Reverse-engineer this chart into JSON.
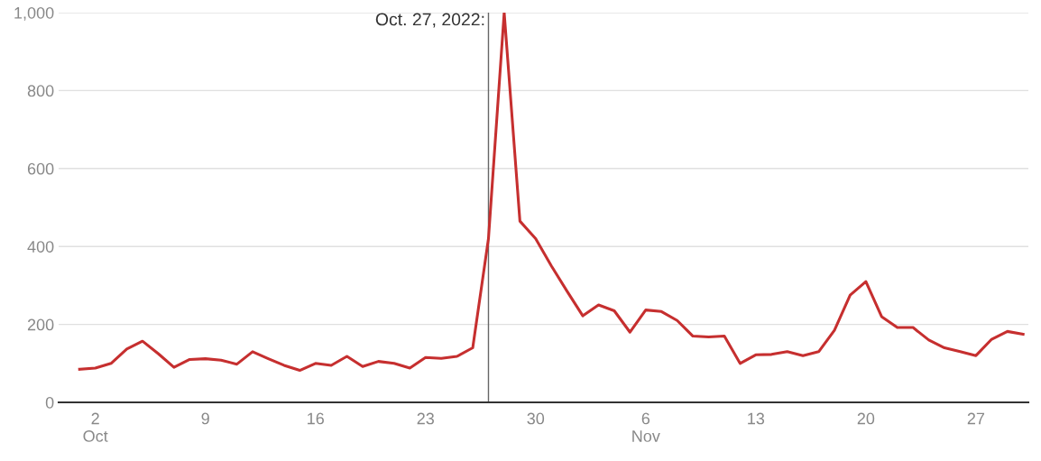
{
  "chart_data": {
    "type": "line",
    "x": [
      "2022-10-01",
      "2022-10-02",
      "2022-10-03",
      "2022-10-04",
      "2022-10-05",
      "2022-10-06",
      "2022-10-07",
      "2022-10-08",
      "2022-10-09",
      "2022-10-10",
      "2022-10-11",
      "2022-10-12",
      "2022-10-13",
      "2022-10-14",
      "2022-10-15",
      "2022-10-16",
      "2022-10-17",
      "2022-10-18",
      "2022-10-19",
      "2022-10-20",
      "2022-10-21",
      "2022-10-22",
      "2022-10-23",
      "2022-10-24",
      "2022-10-25",
      "2022-10-26",
      "2022-10-27",
      "2022-10-28",
      "2022-10-29",
      "2022-10-30",
      "2022-10-31",
      "2022-11-01",
      "2022-11-02",
      "2022-11-03",
      "2022-11-04",
      "2022-11-05",
      "2022-11-06",
      "2022-11-07",
      "2022-11-08",
      "2022-11-09",
      "2022-11-10",
      "2022-11-11",
      "2022-11-12",
      "2022-11-13",
      "2022-11-14",
      "2022-11-15",
      "2022-11-16",
      "2022-11-17",
      "2022-11-18",
      "2022-11-19",
      "2022-11-20",
      "2022-11-21",
      "2022-11-22",
      "2022-11-23",
      "2022-11-24",
      "2022-11-25",
      "2022-11-26",
      "2022-11-27",
      "2022-11-28",
      "2022-11-29",
      "2022-11-30"
    ],
    "series": [
      {
        "color": "#c62f2f",
        "values": [
          85,
          88,
          100,
          137,
          157,
          125,
          90,
          110,
          112,
          108,
          98,
          130,
          112,
          95,
          82,
          100,
          95,
          118,
          92,
          105,
          100,
          88,
          115,
          113,
          118,
          140,
          420,
          1000,
          465,
          420,
          350,
          285,
          222,
          250,
          235,
          180,
          237,
          233,
          210,
          170,
          168,
          170,
          100,
          122,
          123,
          130,
          120,
          130,
          185,
          275,
          310,
          220,
          192,
          192,
          160,
          140,
          130,
          120,
          162,
          182,
          175
        ]
      }
    ],
    "xlim": [
      "2022-09-29T16:00",
      "2022-11-30T08:00"
    ],
    "xticks": [
      {
        "value": "2022-10-02",
        "label": "2\nOct"
      },
      {
        "value": "2022-10-09",
        "label": "9"
      },
      {
        "value": "2022-10-16",
        "label": "16"
      },
      {
        "value": "2022-10-23",
        "label": "23"
      },
      {
        "value": "2022-10-30",
        "label": "30"
      },
      {
        "value": "2022-11-06",
        "label": "6\nNov"
      },
      {
        "value": "2022-11-13",
        "label": "13"
      },
      {
        "value": "2022-11-20",
        "label": "20"
      },
      {
        "value": "2022-11-27",
        "label": "27"
      }
    ],
    "ylim": [
      0,
      1000
    ],
    "yticks": [
      0,
      200,
      400,
      600,
      800,
      {
        "value": 1000,
        "label": "1,000"
      }
    ],
    "grid": "y",
    "marker": "none",
    "line_style": "solid",
    "ref_lines": [
      {
        "axis": "x",
        "value": "2022-10-27",
        "label": "Oct. 27, 2022:",
        "color": "#666666"
      }
    ]
  }
}
